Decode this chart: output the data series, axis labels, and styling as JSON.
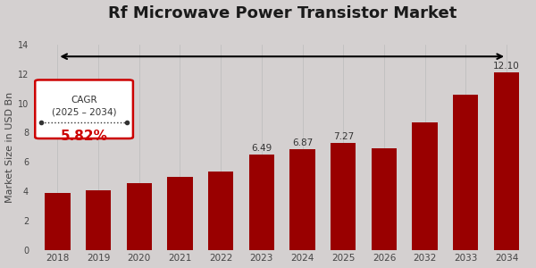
{
  "title": "Rf Microwave Power Transistor Market",
  "ylabel": "Market Size in USD Bn",
  "categories": [
    "2018",
    "2019",
    "2020",
    "2021",
    "2022",
    "2023",
    "2024",
    "2025",
    "2026",
    "2032",
    "2033",
    "2034"
  ],
  "values": [
    3.85,
    4.05,
    4.55,
    4.95,
    5.35,
    6.49,
    6.87,
    7.27,
    6.9,
    8.7,
    10.6,
    12.1
  ],
  "bar_color": "#990000",
  "bg_color": "#d4d0d0",
  "text_labels": [
    "",
    "",
    "",
    "",
    "",
    "6.49",
    "6.87",
    "7.27",
    "",
    "",
    "",
    "12.10"
  ],
  "cagr_text": "CAGR\n(2025 – 2034)",
  "cagr_value": "5.82%",
  "title_fontsize": 13,
  "label_fontsize": 7.5,
  "ylabel_fontsize": 8
}
